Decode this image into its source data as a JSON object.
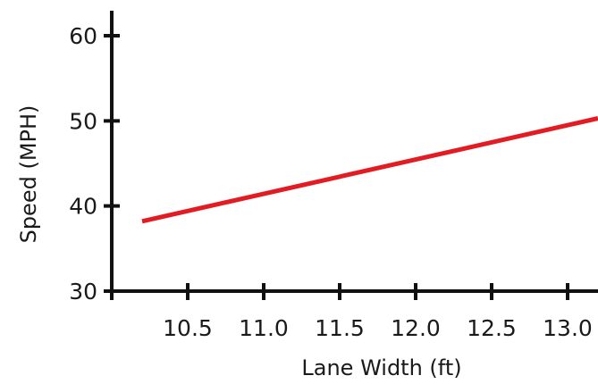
{
  "chart_data": {
    "type": "line",
    "xlabel": "Lane Width (ft)",
    "ylabel": "Speed (MPH)",
    "xlim": [
      10.0,
      13.2
    ],
    "ylim": [
      30,
      60
    ],
    "xticks": [
      10.5,
      11.0,
      11.5,
      12.0,
      12.5,
      13.0
    ],
    "xtick_labels": [
      "10.5",
      "11.0",
      "11.5",
      "12.0",
      "12.5",
      "13.0"
    ],
    "yticks": [
      30,
      40,
      50,
      60
    ],
    "ytick_labels": [
      "30",
      "40",
      "50",
      "60"
    ],
    "grid": false,
    "series": [
      {
        "color": "#e31b23",
        "x": [
          10.2,
          13.2
        ],
        "y": [
          38.2,
          50.3
        ]
      }
    ],
    "colors": {
      "axis": "#111111",
      "line": "#e31b23"
    }
  }
}
